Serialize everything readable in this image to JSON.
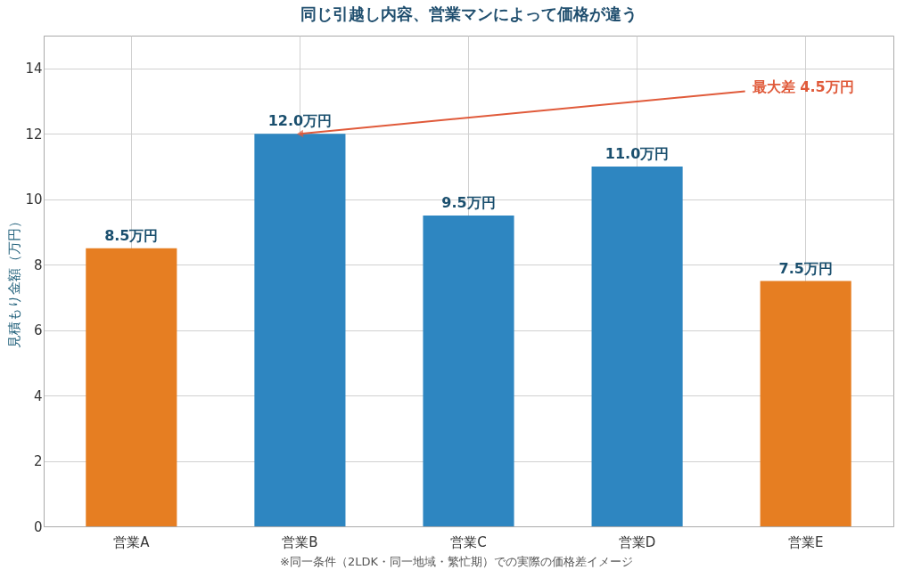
{
  "chart_data": {
    "type": "bar",
    "title": "同じ引越し内容、営業マンによって価格が違う",
    "ylabel": "見積もり金額（万円）",
    "categories": [
      "営業A",
      "営業B",
      "営業C",
      "営業D",
      "営業E"
    ],
    "values": [
      8.5,
      12.0,
      9.5,
      11.0,
      7.5
    ],
    "colors": [
      "#e67e22",
      "#2e86c1",
      "#2e86c1",
      "#2e86c1",
      "#e67e22"
    ],
    "value_labels": [
      "8.5万円",
      "12.0万円",
      "9.5万円",
      "11.0万円",
      "7.5万円"
    ],
    "ylim": [
      0,
      15
    ],
    "yticks": [
      0,
      2,
      4,
      6,
      8,
      10,
      12,
      14
    ],
    "grid": true,
    "annotations": [
      {
        "text": "最大差 4.5万円",
        "x": "営業B",
        "y": 12.0
      },
      "※同一条件（2LDK・同一地域・繁忙期）での実際の価格差イメージ"
    ]
  }
}
